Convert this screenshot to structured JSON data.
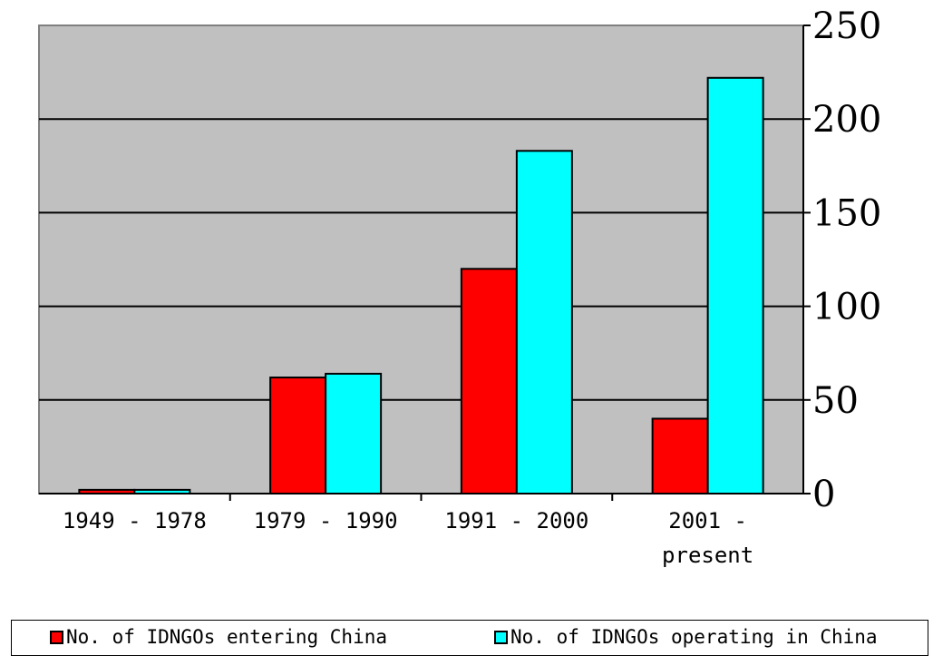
{
  "chart_data": {
    "type": "bar",
    "categories": [
      "1949 - 1978",
      "1979 - 1990",
      "1991 - 2000",
      "2001 - present"
    ],
    "series": [
      {
        "name": "No. of IDNGOs entering China",
        "values": [
          2,
          62,
          120,
          40
        ],
        "color": "#ff0000"
      },
      {
        "name": "No. of IDNGOs operating in China",
        "values": [
          2,
          64,
          183,
          222
        ],
        "color": "#00ffff"
      }
    ],
    "yticks": [
      "0",
      "50",
      "100",
      "150",
      "200",
      "250"
    ],
    "ylim": [
      0,
      250
    ],
    "y_axis_side": "right",
    "plot_background": "#c0c0c0",
    "grid": true,
    "legend_position": "bottom"
  }
}
